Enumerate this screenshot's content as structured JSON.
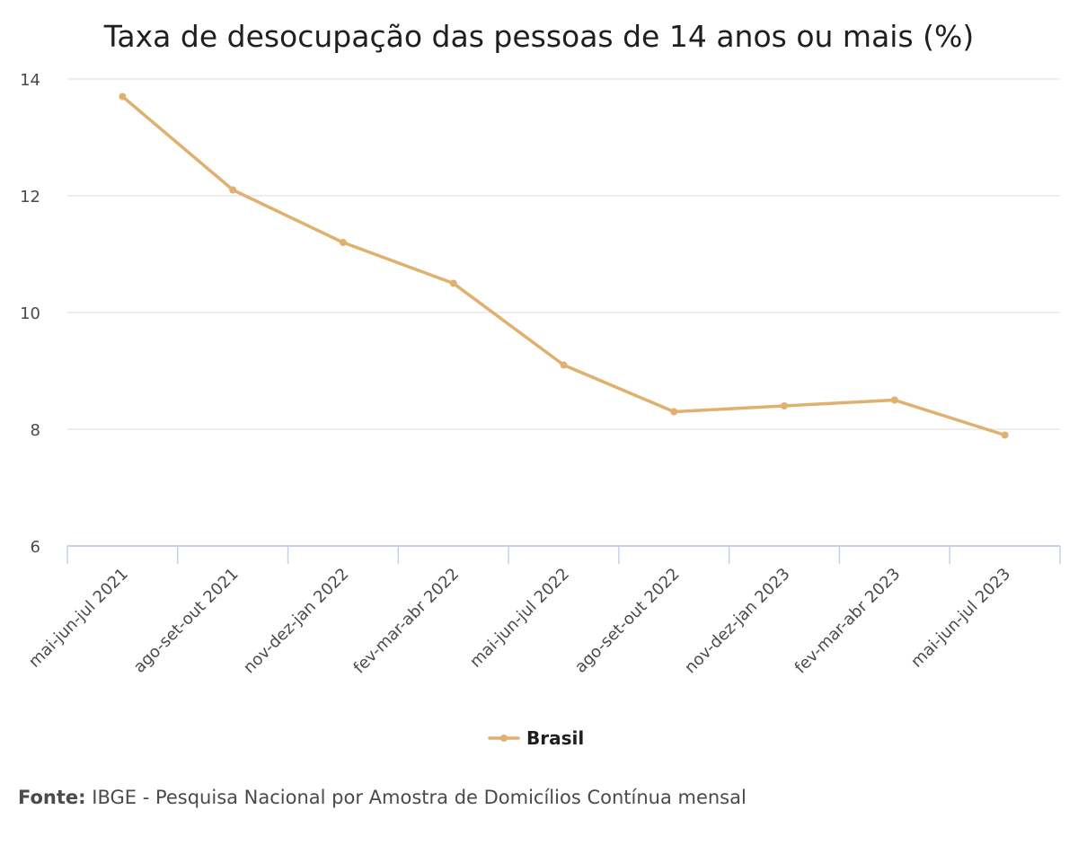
{
  "chart_data": {
    "type": "line",
    "title": "Taxa de desocupação das pessoas de 14 anos ou mais (%)",
    "categories": [
      "mai-jun-jul 2021",
      "ago-set-out 2021",
      "nov-dez-jan 2022",
      "fev-mar-abr 2022",
      "mai-jun-jul 2022",
      "ago-set-out 2022",
      "nov-dez-jan 2023",
      "fev-mar-abr 2023",
      "mai-jun-jul 2023"
    ],
    "series": [
      {
        "name": "Brasil",
        "values": [
          13.7,
          12.1,
          11.2,
          10.5,
          9.1,
          8.3,
          8.4,
          8.5,
          7.9
        ],
        "color": "#e0b06e"
      }
    ],
    "ylim": [
      6,
      14
    ],
    "yticks": [
      "6",
      "8",
      "10",
      "12",
      "14"
    ],
    "grid": true,
    "legend": "bottom-center",
    "xlabel": "",
    "ylabel": ""
  },
  "source": {
    "label": "Fonte:",
    "text": "IBGE - Pesquisa Nacional por Amostra de Domicílios Contínua mensal"
  },
  "colors": {
    "grid": "#dedede",
    "axis": "#c5d1ea",
    "text": "#4a4a4a",
    "title": "#1f1f1f"
  }
}
